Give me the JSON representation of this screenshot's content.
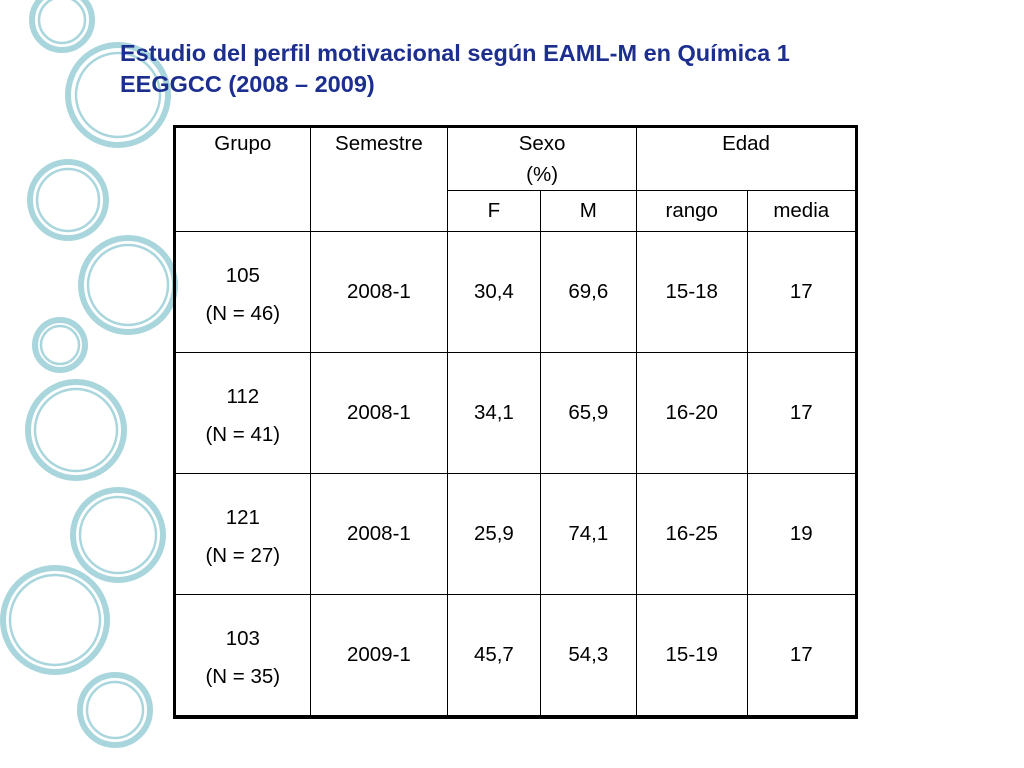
{
  "title": {
    "line1": "Estudio del perfil motivacional según EAML-M en Química 1",
    "line2": "EEGGCC (2008 – 2009)"
  },
  "table": {
    "headers": {
      "grupo": "Grupo",
      "semestre": "Semestre",
      "sexo": "Sexo",
      "sexo_unit": "(%)",
      "edad": "Edad",
      "f": "F",
      "m": "M",
      "rango": "rango",
      "media": "media"
    },
    "rows": [
      {
        "grupo": "105",
        "n": "(N = 46)",
        "semestre": "2008-1",
        "f": "30,4",
        "m": "69,6",
        "rango": "15-18",
        "media": "17"
      },
      {
        "grupo": "112",
        "n": "(N = 41)",
        "semestre": "2008-1",
        "f": "34,1",
        "m": "65,9",
        "rango": "16-20",
        "media": "17"
      },
      {
        "grupo": "121",
        "n": "(N = 27)",
        "semestre": "2008-1",
        "f": "25,9",
        "m": "74,1",
        "rango": "16-25",
        "media": "19"
      },
      {
        "grupo": "103",
        "n": "(N = 35)",
        "semestre": "2009-1",
        "f": "45,7",
        "m": "54,3",
        "rango": "15-19",
        "media": "17"
      }
    ]
  },
  "colors": {
    "title": "#1c2f8f",
    "decoration": "#a9d6dd"
  },
  "decoration": "light-teal-circles"
}
